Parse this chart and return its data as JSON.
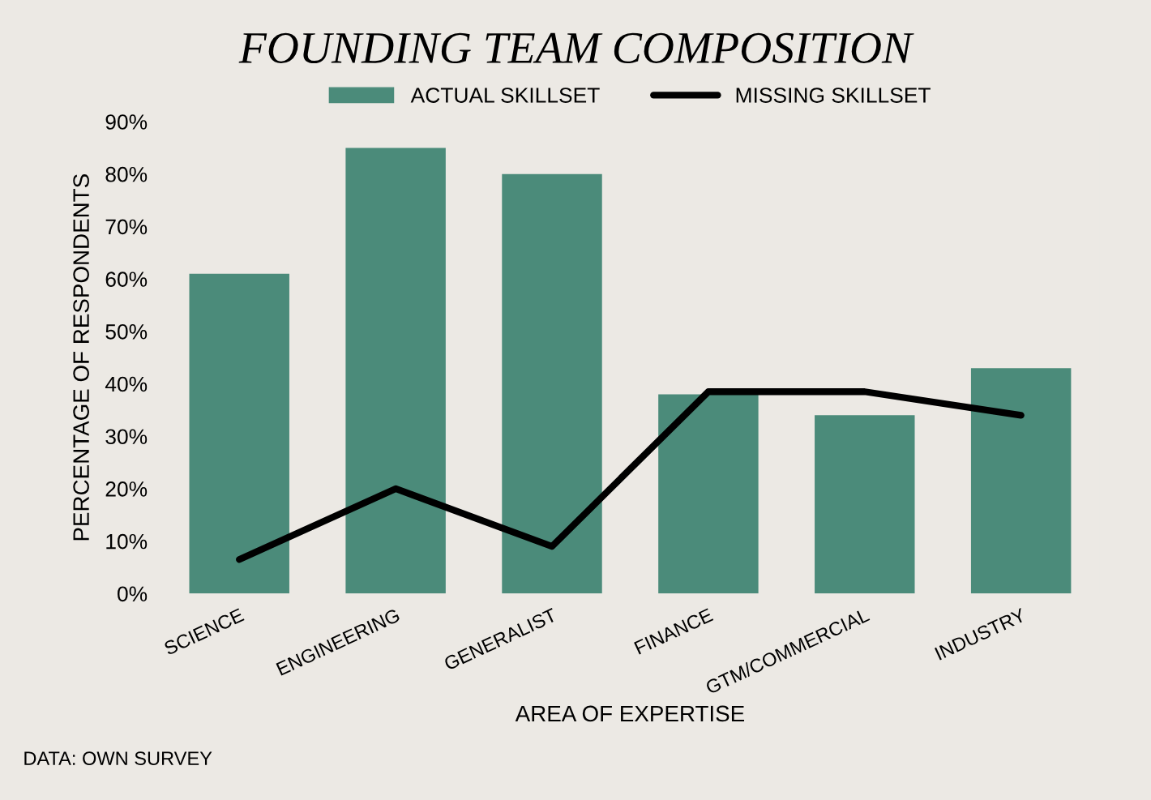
{
  "chart_data": {
    "type": "bar",
    "title": "FOUNDING TEAM COMPOSITION",
    "xlabel": "AREA OF EXPERTISE",
    "ylabel": "PERCENTAGE OF RESPONDENTS",
    "categories": [
      "SCIENCE",
      "ENGINEERING",
      "GENERALIST",
      "FINANCE",
      "GTM/COMMERCIAL",
      "INDUSTRY"
    ],
    "series": [
      {
        "name": "ACTUAL SKILLSET",
        "color": "#4b8b7a",
        "values": [
          61,
          85,
          80,
          38,
          34,
          43
        ]
      },
      {
        "name": "MISSING SKILLSET",
        "type": "line",
        "color": "#000000",
        "values": [
          6.5,
          20,
          9,
          38.5,
          38.5,
          34
        ]
      }
    ],
    "ylim": [
      0,
      90
    ],
    "yticks": [
      {
        "value": 0,
        "label": "0%"
      },
      {
        "value": 10,
        "label": "10%"
      },
      {
        "value": 20,
        "label": "20%"
      },
      {
        "value": 30,
        "label": "30%"
      },
      {
        "value": 40,
        "label": "40%"
      },
      {
        "value": 50,
        "label": "50%"
      },
      {
        "value": 60,
        "label": "60%"
      },
      {
        "value": 70,
        "label": "70%"
      },
      {
        "value": 80,
        "label": "80%"
      },
      {
        "value": 90,
        "label": "90%"
      }
    ],
    "grid": false,
    "legend": "top",
    "marker": "none",
    "annotations": [
      "DATA: OWN SURVEY"
    ]
  }
}
